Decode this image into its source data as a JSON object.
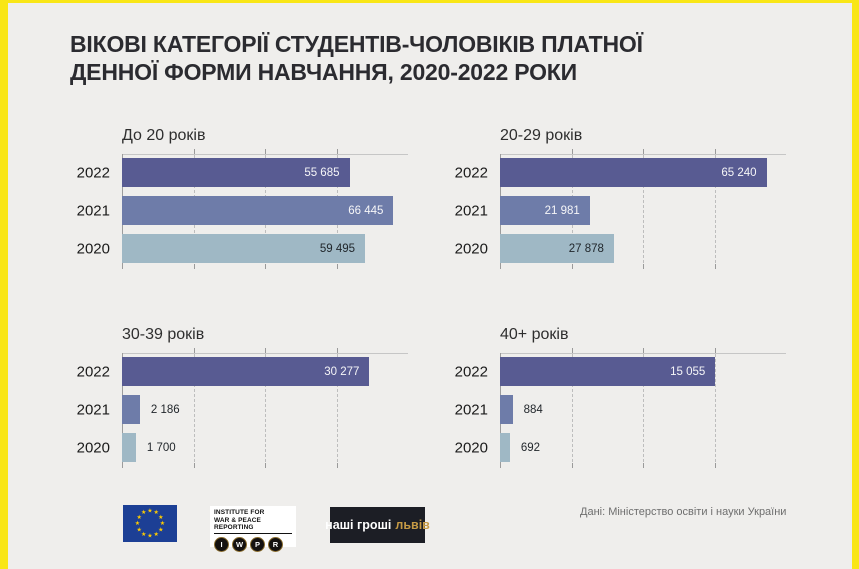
{
  "frame": {
    "background": "#efeeec",
    "accent_yellow": "#f9e616"
  },
  "title": {
    "line1": "ВІКОВІ КАТЕГОРІЇ СТУДЕНТІВ-ЧОЛОВІКІВ ПЛАТНОЇ",
    "line2": "ДЕННОЇ ФОРМИ НАВЧАННЯ, 2020-2022 РОКИ"
  },
  "bar_colors": {
    "2022": "#585b92",
    "2021": "#6e7ca9",
    "2020": "#9fb8c5"
  },
  "label_colors": {
    "inside_on_dark": "#f6f6f8",
    "inside_on_light": "#20262b",
    "outside": "#1f2429"
  },
  "chart_data": [
    {
      "type": "bar",
      "orientation": "horizontal",
      "title": "До 20 років",
      "categories": [
        "2022",
        "2021",
        "2020"
      ],
      "values": [
        55685,
        66445,
        59495
      ],
      "labels": [
        "55 685",
        "66 445",
        "59 495"
      ],
      "xmax": 70000,
      "gridline_interval": 17500,
      "grid": "dashed",
      "legend": "none"
    },
    {
      "type": "bar",
      "orientation": "horizontal",
      "title": "20-29 років",
      "categories": [
        "2022",
        "2021",
        "2020"
      ],
      "values": [
        65240,
        21981,
        27878
      ],
      "labels": [
        "65 240",
        "21 981",
        "27 878"
      ],
      "xmax": 70000,
      "gridline_interval": 17500,
      "grid": "dashed",
      "legend": "none"
    },
    {
      "type": "bar",
      "orientation": "horizontal",
      "title": "30-39 років",
      "categories": [
        "2022",
        "2021",
        "2020"
      ],
      "values": [
        30277,
        2186,
        1700
      ],
      "labels": [
        "30 277",
        "2 186",
        "1 700"
      ],
      "xmax": 35000,
      "gridline_interval": 8750,
      "grid": "dashed",
      "legend": "none"
    },
    {
      "type": "bar",
      "orientation": "horizontal",
      "title": "40+ років",
      "categories": [
        "2022",
        "2021",
        "2020"
      ],
      "values": [
        15055,
        884,
        692
      ],
      "labels": [
        "15 055",
        "884",
        "692"
      ],
      "xmax": 20000,
      "gridline_interval": 5000,
      "grid": "dashed",
      "legend": "none"
    }
  ],
  "footer": {
    "source": "Дані: Міністерство освіти і науки України",
    "eu_flag": {
      "name": "eu-flag",
      "star_count": 12
    },
    "iwpr": {
      "line1": "INSTITUTE FOR",
      "line2": "WAR & PEACE REPORTING",
      "keys": [
        "I",
        "W",
        "P",
        "R"
      ]
    },
    "nashi_groshi": {
      "white": "наші гроші",
      "gold": "львів"
    }
  }
}
